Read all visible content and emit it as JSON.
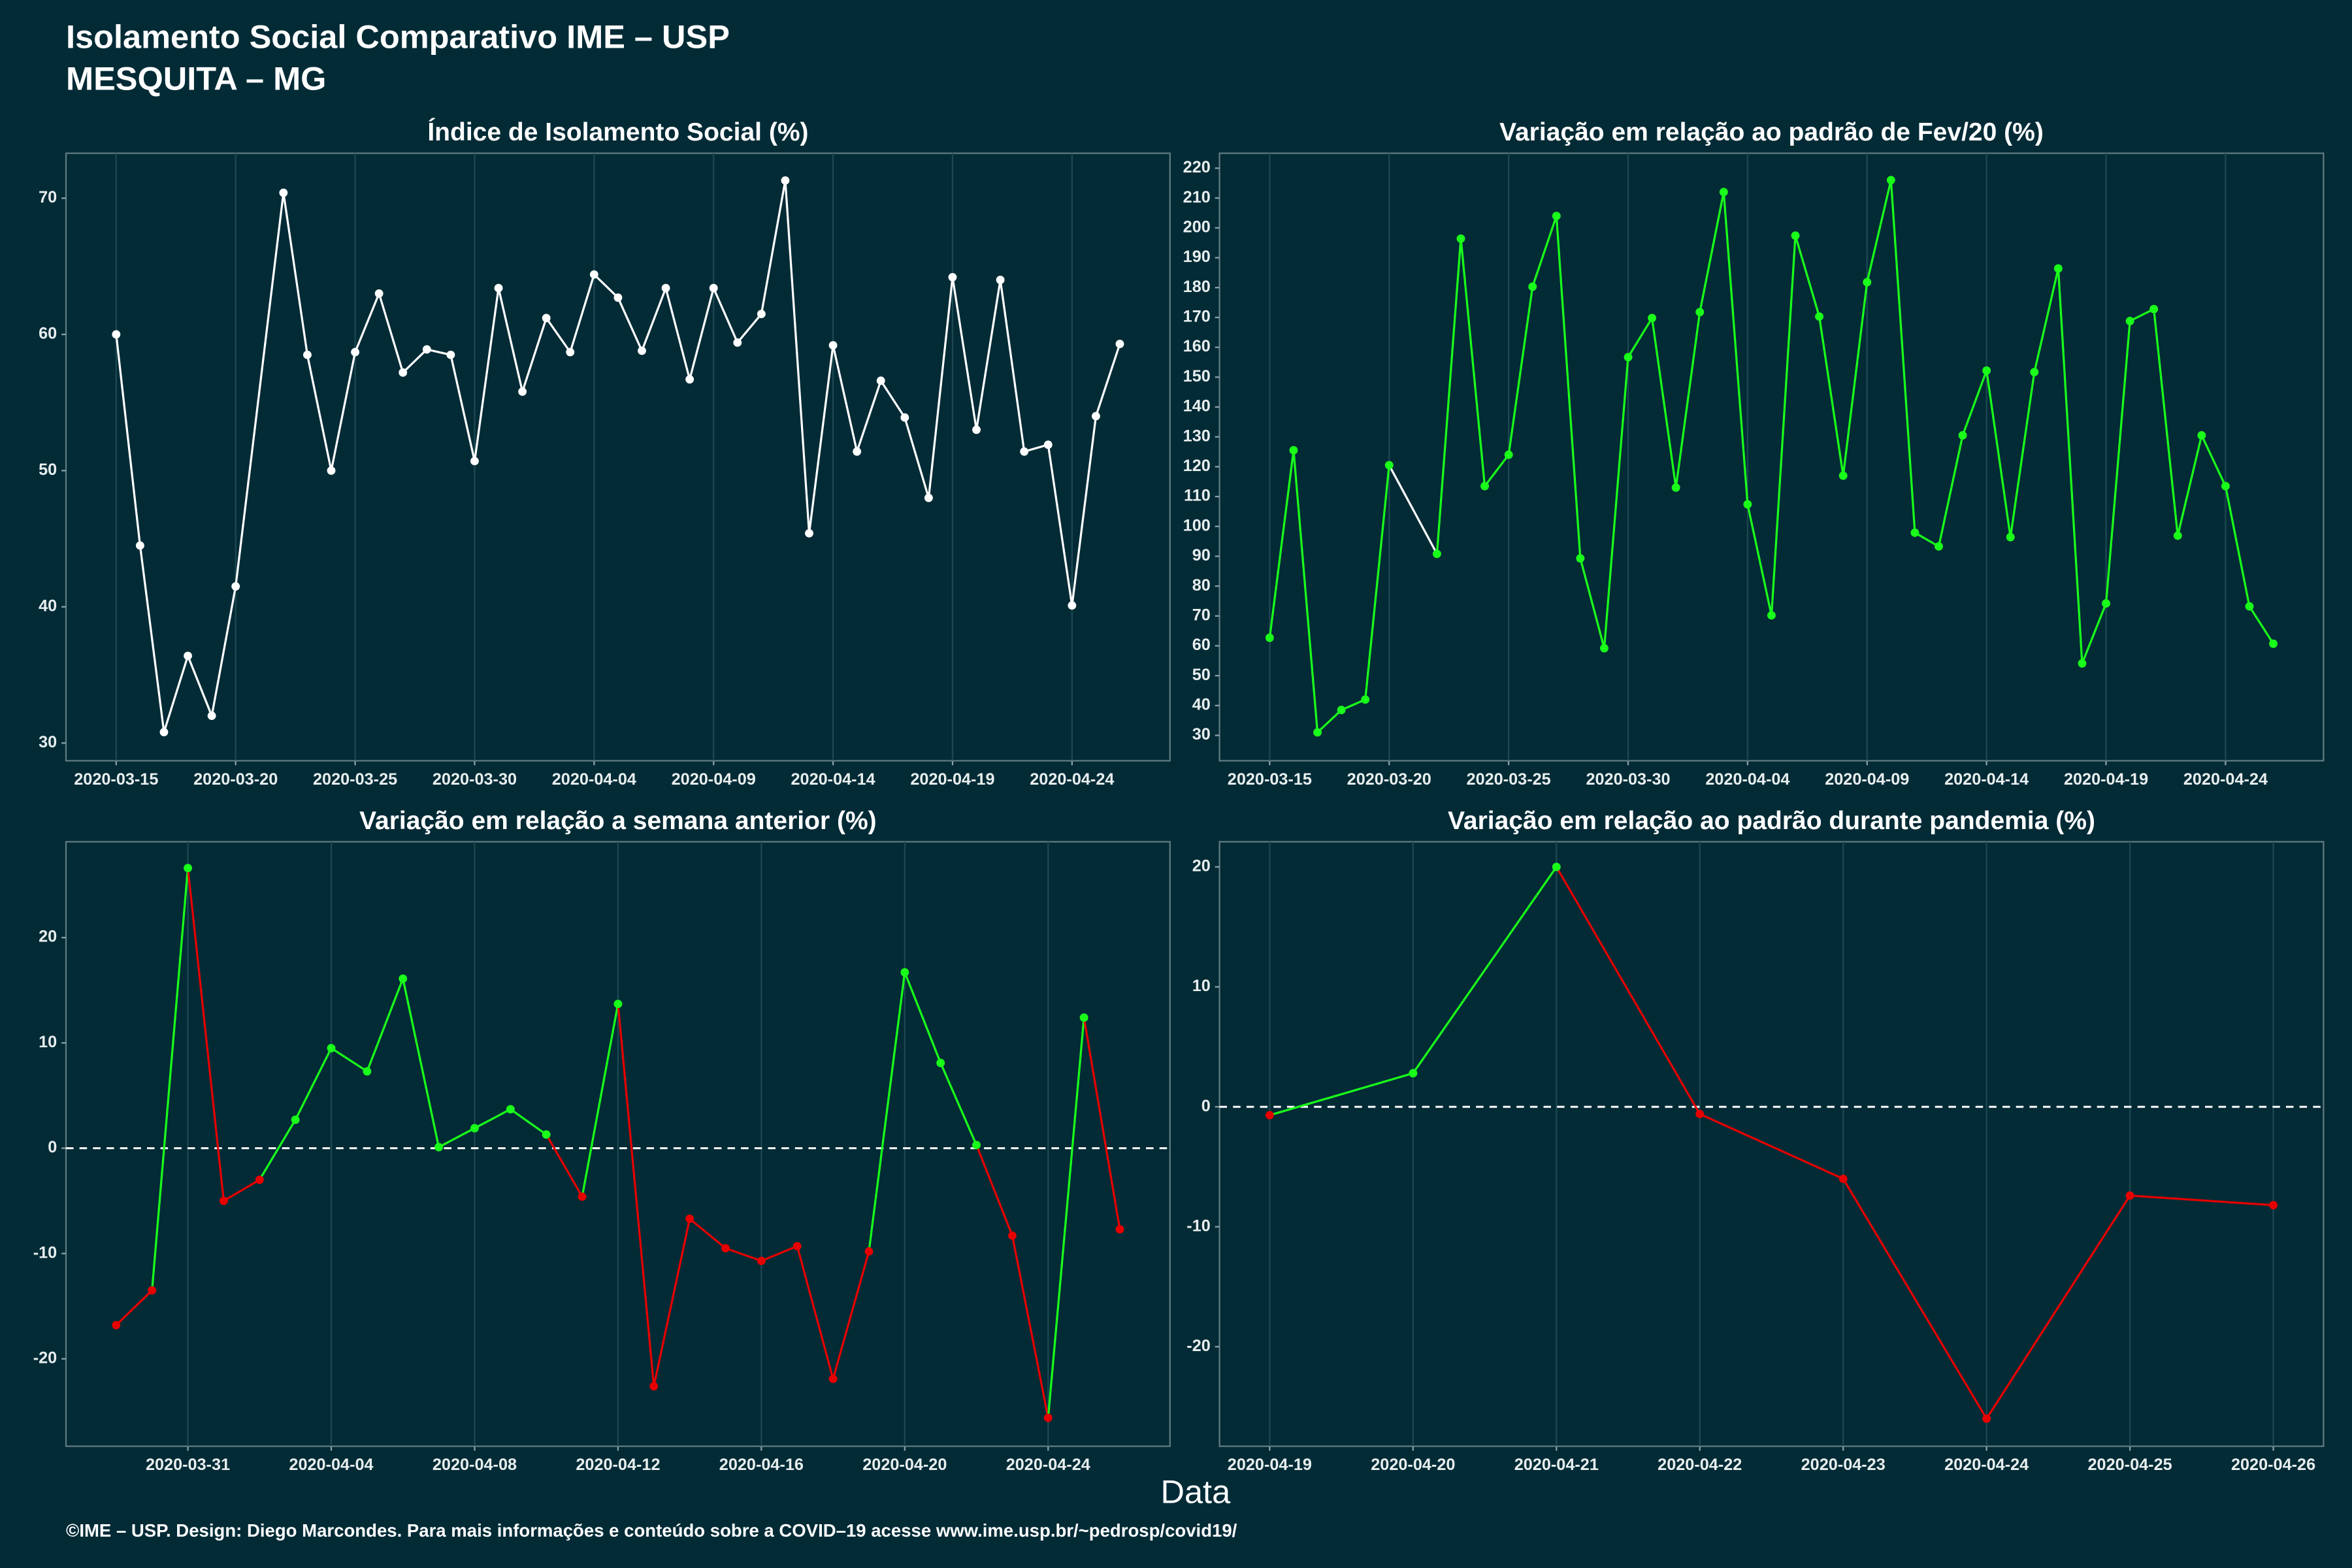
{
  "header": {
    "title": "Isolamento Social Comparativo IME – USP",
    "subtitle": "MESQUITA – MG"
  },
  "x_label": "Data",
  "caption": "©IME – USP. Design: Diego Marcondes. Para mais informações e conteúdo sobre a COVID–19 acesse www.ime.usp.br/~pedrosp/covid19/",
  "chart_data": [
    {
      "type": "line",
      "title": "Índice de Isolamento Social (%)",
      "color": "#ffffff",
      "grid": "x",
      "x": [
        "2020-03-15",
        "2020-03-16",
        "2020-03-17",
        "2020-03-18",
        "2020-03-19",
        "2020-03-20",
        "2020-03-22",
        "2020-03-23",
        "2020-03-24",
        "2020-03-25",
        "2020-03-26",
        "2020-03-27",
        "2020-03-28",
        "2020-03-29",
        "2020-03-30",
        "2020-03-31",
        "2020-04-01",
        "2020-04-02",
        "2020-04-03",
        "2020-04-04",
        "2020-04-05",
        "2020-04-06",
        "2020-04-07",
        "2020-04-08",
        "2020-04-09",
        "2020-04-10",
        "2020-04-11",
        "2020-04-12",
        "2020-04-13",
        "2020-04-14",
        "2020-04-15",
        "2020-04-16",
        "2020-04-17",
        "2020-04-18",
        "2020-04-19",
        "2020-04-20",
        "2020-04-21",
        "2020-04-22",
        "2020-04-23",
        "2020-04-24",
        "2020-04-25",
        "2020-04-26"
      ],
      "values": [
        60,
        44.5,
        30.8,
        36.4,
        32,
        41.5,
        70.4,
        58.5,
        50,
        58.7,
        63,
        57.2,
        58.9,
        58.5,
        50.7,
        63.4,
        55.8,
        61.2,
        58.7,
        64.4,
        62.7,
        58.8,
        63.4,
        56.7,
        63.4,
        59.4,
        61.5,
        71.3,
        45.4,
        59.2,
        51.4,
        56.6,
        53.9,
        48,
        64.2,
        53,
        64,
        51.4,
        51.9,
        40.1,
        54,
        59.3
      ],
      "xlim": [
        "2020-03-12T21:36Z",
        "2020-04-28T02:24Z"
      ],
      "xticks": [
        "2020-03-15",
        "2020-03-20",
        "2020-03-25",
        "2020-03-30",
        "2020-04-04",
        "2020-04-09",
        "2020-04-14",
        "2020-04-19",
        "2020-04-24"
      ],
      "ylim": [
        28.7,
        73.3
      ],
      "yticks": [
        30,
        40,
        50,
        60,
        70
      ]
    },
    {
      "type": "line",
      "title": "Variação em relação ao padrão de Fev/20 (%)",
      "color": "#1aff1a",
      "gap_color": "#ffffff",
      "grid": "x",
      "x": [
        "2020-03-15",
        "2020-03-16",
        "2020-03-17",
        "2020-03-18",
        "2020-03-19",
        "2020-03-20",
        "2020-03-22",
        "2020-03-23",
        "2020-03-24",
        "2020-03-25",
        "2020-03-26",
        "2020-03-27",
        "2020-03-28",
        "2020-03-29",
        "2020-03-30",
        "2020-03-31",
        "2020-04-01",
        "2020-04-02",
        "2020-04-03",
        "2020-04-04",
        "2020-04-05",
        "2020-04-06",
        "2020-04-07",
        "2020-04-08",
        "2020-04-09",
        "2020-04-10",
        "2020-04-11",
        "2020-04-12",
        "2020-04-13",
        "2020-04-14",
        "2020-04-15",
        "2020-04-16",
        "2020-04-17",
        "2020-04-18",
        "2020-04-19",
        "2020-04-20",
        "2020-04-21",
        "2020-04-22",
        "2020-04-23",
        "2020-04-24",
        "2020-04-25",
        "2020-04-26"
      ],
      "values": [
        62.7,
        125.5,
        31,
        38.5,
        42,
        120.5,
        90.8,
        196.4,
        113.5,
        124,
        180.3,
        204,
        89.3,
        59.2,
        156.7,
        169.8,
        113,
        171.8,
        212,
        107.4,
        70.2,
        197.4,
        170.3,
        117,
        181.8,
        216,
        97.9,
        93.3,
        130.5,
        152.2,
        96.4,
        151.7,
        186.4,
        54.1,
        74.2,
        168.8,
        172.8,
        96.9,
        130.5,
        113.5,
        73.2,
        60.7
      ],
      "xlim": [
        "2020-03-12T21:36Z",
        "2020-04-28T02:24Z"
      ],
      "xticks": [
        "2020-03-15",
        "2020-03-20",
        "2020-03-25",
        "2020-03-30",
        "2020-04-04",
        "2020-04-09",
        "2020-04-14",
        "2020-04-19",
        "2020-04-24"
      ],
      "ylim": [
        21.5,
        225
      ],
      "yticks": [
        30,
        40,
        50,
        60,
        70,
        80,
        90,
        100,
        110,
        120,
        130,
        140,
        150,
        160,
        170,
        180,
        190,
        200,
        210,
        220
      ]
    },
    {
      "type": "line",
      "title": "Variação em relação a semana anterior (%)",
      "positive_color": "#1aff1a",
      "negative_color": "#e60000",
      "reference_line": 0,
      "grid": "x",
      "x": [
        "2020-03-29",
        "2020-03-30",
        "2020-03-31",
        "2020-04-01",
        "2020-04-02",
        "2020-04-03",
        "2020-04-04",
        "2020-04-05",
        "2020-04-06",
        "2020-04-07",
        "2020-04-08",
        "2020-04-09",
        "2020-04-10",
        "2020-04-11",
        "2020-04-12",
        "2020-04-13",
        "2020-04-14",
        "2020-04-15",
        "2020-04-16",
        "2020-04-17",
        "2020-04-18",
        "2020-04-19",
        "2020-04-20",
        "2020-04-21",
        "2020-04-22",
        "2020-04-23",
        "2020-04-24",
        "2020-04-25",
        "2020-04-26"
      ],
      "values": [
        -16.8,
        -13.5,
        26.6,
        -5,
        -3,
        2.7,
        9.5,
        7.3,
        16.1,
        0.1,
        1.9,
        3.7,
        1.3,
        -4.6,
        13.7,
        -22.6,
        -6.7,
        -9.5,
        -10.7,
        -9.3,
        -21.9,
        -9.8,
        16.7,
        8.1,
        0.3,
        -8.3,
        -25.6,
        12.4,
        -7.7
      ],
      "xlim": [
        "2020-03-27T14:24Z",
        "2020-04-27T09:36Z"
      ],
      "xticks": [
        "2020-03-31",
        "2020-04-04",
        "2020-04-08",
        "2020-04-12",
        "2020-04-16",
        "2020-04-20",
        "2020-04-24"
      ],
      "ylim": [
        -28.3,
        29.1
      ],
      "yticks": [
        -20,
        -10,
        0,
        10,
        20
      ]
    },
    {
      "type": "line",
      "title": "Variação em relação ao padrão durante pandemia (%)",
      "positive_color": "#1aff1a",
      "negative_color": "#e60000",
      "reference_line": 0,
      "grid": "x",
      "x": [
        "2020-04-19",
        "2020-04-20",
        "2020-04-21",
        "2020-04-22",
        "2020-04-23",
        "2020-04-24",
        "2020-04-25",
        "2020-04-26"
      ],
      "values": [
        -0.7,
        2.8,
        20,
        -0.6,
        -6,
        -26,
        -7.4,
        -8.2
      ],
      "xlim": [
        "2020-04-18T15:36Z",
        "2020-04-26T08:24Z"
      ],
      "xticks": [
        "2020-04-19",
        "2020-04-20",
        "2020-04-21",
        "2020-04-22",
        "2020-04-23",
        "2020-04-24",
        "2020-04-25",
        "2020-04-26"
      ],
      "ylim": [
        -28.3,
        22.1
      ],
      "yticks": [
        -20,
        -10,
        0,
        10,
        20
      ]
    }
  ]
}
